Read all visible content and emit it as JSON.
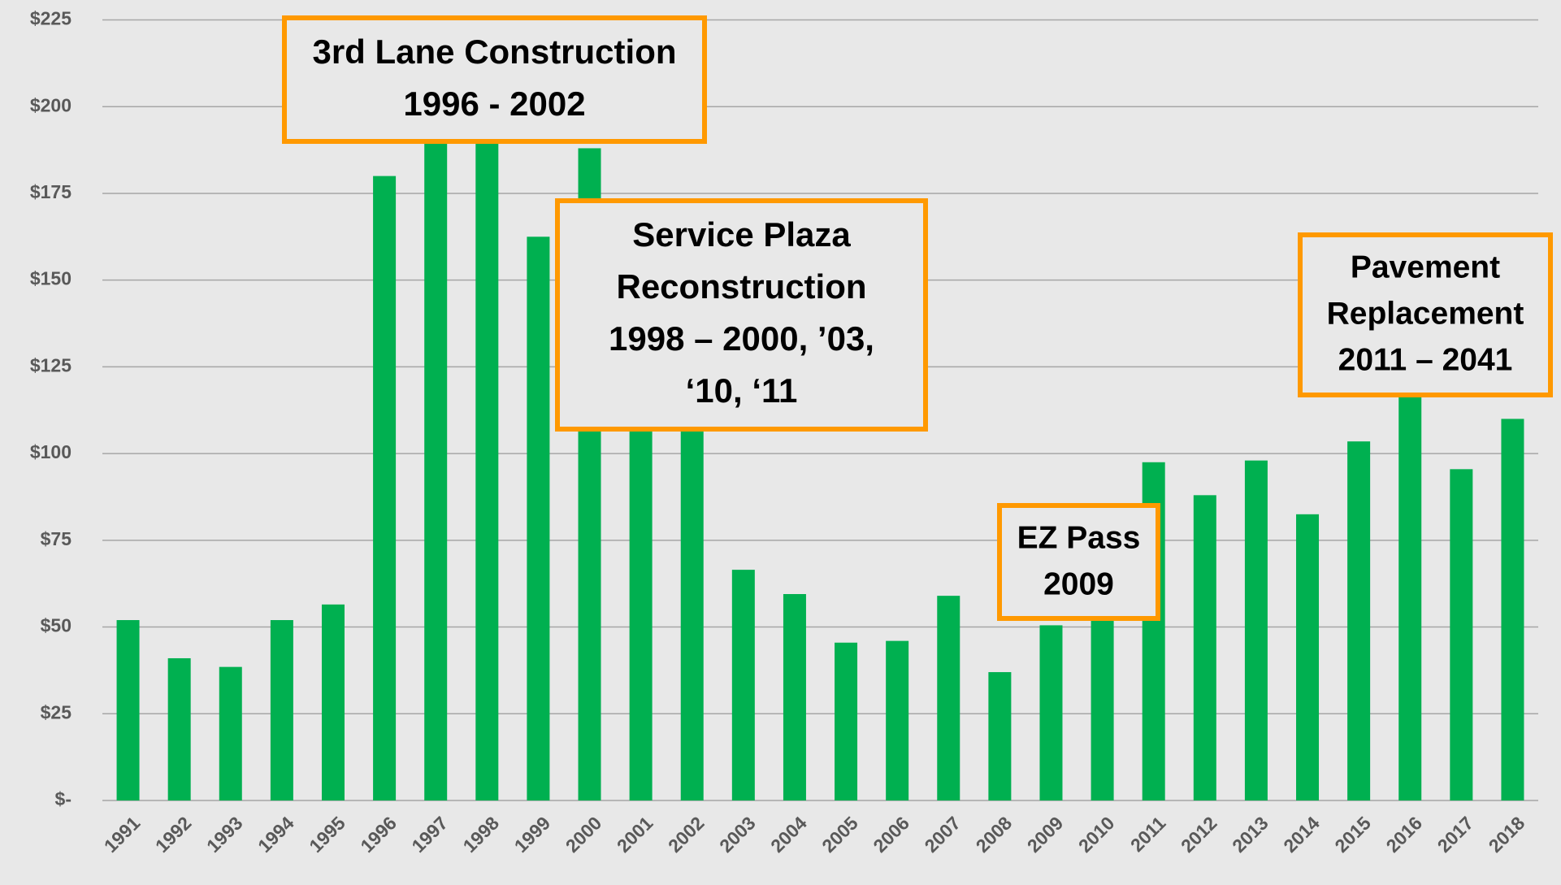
{
  "chart_data": {
    "type": "bar",
    "categories": [
      "1991",
      "1992",
      "1993",
      "1994",
      "1995",
      "1996",
      "1997",
      "1998",
      "1999",
      "2000",
      "2001",
      "2002",
      "2003",
      "2004",
      "2005",
      "2006",
      "2007",
      "2008",
      "2009",
      "2010",
      "2011",
      "2012",
      "2013",
      "2014",
      "2015",
      "2016",
      "2017",
      "2018"
    ],
    "values": [
      52,
      41,
      38.5,
      52,
      56.5,
      180,
      195,
      206,
      162.5,
      188,
      160,
      117,
      66.5,
      59.5,
      45.5,
      46,
      59,
      37,
      50.5,
      55.5,
      97.5,
      88,
      98,
      82.5,
      103.5,
      122.5,
      95.5,
      110
    ],
    "color": "#00b050",
    "ylim": [
      0,
      225
    ],
    "yticks": [
      {
        "value": 0,
        "label": "$-"
      },
      {
        "value": 25,
        "label": "$25"
      },
      {
        "value": 50,
        "label": "$50"
      },
      {
        "value": 75,
        "label": "$75"
      },
      {
        "value": 100,
        "label": "$100"
      },
      {
        "value": 125,
        "label": "$125"
      },
      {
        "value": 150,
        "label": "$150"
      },
      {
        "value": 175,
        "label": "$175"
      },
      {
        "value": 200,
        "label": "$200"
      },
      {
        "value": 225,
        "label": "$225"
      }
    ],
    "grid": true,
    "annotations": [
      {
        "lines": [
          "3rd Lane Construction",
          "1996 - 2002"
        ]
      },
      {
        "lines": [
          "Service Plaza",
          "Reconstruction",
          "1998 – 2000, ’03,",
          "‘10, ‘11"
        ]
      },
      {
        "lines": [
          "EZ Pass",
          "2009"
        ]
      },
      {
        "lines": [
          "Pavement",
          "Replacement",
          "2011 – 2041"
        ]
      }
    ]
  }
}
